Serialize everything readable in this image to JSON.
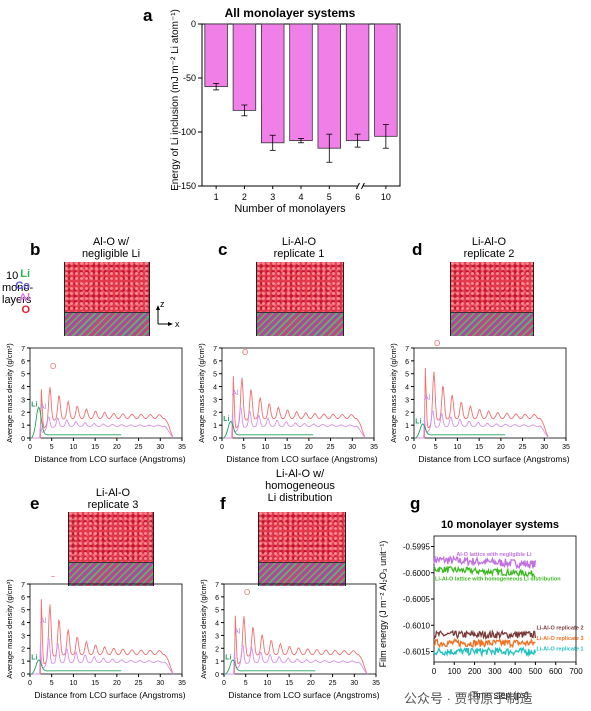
{
  "panels": {
    "a": {
      "letter": "a"
    },
    "b": {
      "letter": "b",
      "caption": [
        "Al-O w/",
        "negligible Li"
      ]
    },
    "c": {
      "letter": "c",
      "caption": [
        "Li-Al-O",
        "replicate 1"
      ]
    },
    "d": {
      "letter": "d",
      "caption": [
        "Li-Al-O",
        "replicate 2"
      ]
    },
    "e": {
      "letter": "e",
      "caption": [
        "Li-Al-O",
        "replicate 3"
      ]
    },
    "f": {
      "letter": "f",
      "caption": [
        "Li-Al-O w/",
        "homogeneous",
        "Li distribution"
      ]
    },
    "g": {
      "letter": "g"
    }
  },
  "structure_legend": {
    "layers_label": [
      "10",
      "mono-",
      "layers"
    ],
    "elements": [
      "Li",
      "Co",
      "Al",
      "O"
    ],
    "colors": {
      "Li": "#2cb34a",
      "Co": "#5a5adf",
      "Al": "#e070e0",
      "O": "#e8182a"
    },
    "axis_z": "z",
    "axis_x": "x"
  },
  "density_axes": {
    "ylabel": "Average mass density (g/cm³)",
    "xlabel": "Distance from LCO surface (Angstroms)",
    "xticks": [
      "0",
      "5",
      "10",
      "15",
      "20",
      "25",
      "30",
      "35"
    ],
    "yticks": [
      "0",
      "1",
      "2",
      "3",
      "4",
      "5",
      "6",
      "7"
    ],
    "labels": {
      "O": "O",
      "Al": "Al",
      "Li": "Li"
    }
  },
  "watermark": "公众号 · 贾特原子制造",
  "chart_data": [
    {
      "id": "a",
      "type": "bar",
      "title": "All monolayer systems",
      "xlabel": "Number of monolayers",
      "ylabel": "Energy of Li inclusion (mJ m⁻² Li atom⁻¹)",
      "categories": [
        "1",
        "2",
        "3",
        "4",
        "5",
        "6",
        "10"
      ],
      "values": [
        -58,
        -80,
        -110,
        -108,
        -115,
        -108,
        -104
      ],
      "errors": [
        3,
        5,
        7,
        2,
        13,
        6,
        11
      ],
      "ylim": [
        -150,
        0
      ],
      "yticks": [
        "0",
        "-50",
        "-100",
        "-150"
      ],
      "axis_break": true,
      "bar_color": "#f080e8"
    },
    {
      "id": "g",
      "type": "line",
      "title": "10 monolayer systems",
      "xlabel": "Time step (ps)",
      "ylabel": "Film energy (J m⁻² Al₂O₃ unit⁻¹)",
      "xlim": [
        0,
        700
      ],
      "ylim": [
        -0.6017,
        -0.5993
      ],
      "xticks": [
        "0",
        "100",
        "200",
        "300",
        "400",
        "500",
        "600",
        "700"
      ],
      "yticks": [
        "-0.5995",
        "-0.6000",
        "-0.6005",
        "-0.6010",
        "-0.6015"
      ],
      "series": [
        {
          "name": "Al-O lattice with negligible Li",
          "color": "#c070e0",
          "level": -0.59975,
          "noise": 8e-05
        },
        {
          "name": "Li-Al-O lattice with homogeneous Li distribution",
          "color": "#3cb820",
          "level": -0.59993,
          "noise": 6e-05
        },
        {
          "name": "Li-Al-O replicate 2",
          "color": "#7a3a3a",
          "level": -0.60118,
          "noise": 7e-05
        },
        {
          "name": "Li-Al-O replicate 3",
          "color": "#f07020",
          "level": -0.60134,
          "noise": 7e-05
        },
        {
          "name": "Li-Al-O replicate 1",
          "color": "#20c0c0",
          "level": -0.6015,
          "noise": 7e-05
        }
      ]
    }
  ]
}
